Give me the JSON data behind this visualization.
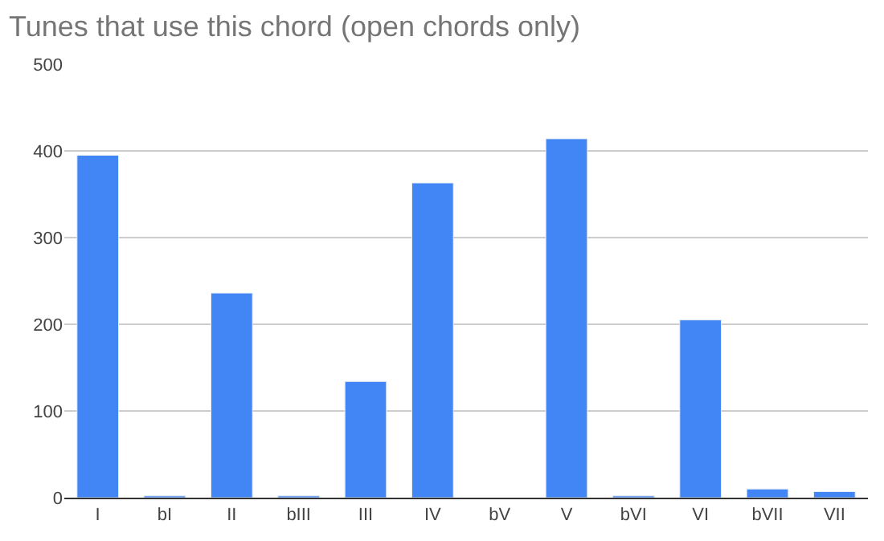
{
  "chart_data": {
    "type": "bar",
    "title": "Tunes that use this chord (open chords only)",
    "categories": [
      "I",
      "bI",
      "II",
      "bIII",
      "III",
      "IV",
      "bV",
      "V",
      "bVI",
      "VI",
      "bVII",
      "VII"
    ],
    "values": [
      395,
      2,
      236,
      2,
      134,
      363,
      null,
      414,
      2,
      205,
      10,
      7
    ],
    "color": "#4285f4",
    "ylim": [
      0,
      500
    ],
    "yticks": [
      0,
      100,
      200,
      300,
      400,
      500
    ],
    "grid": "y"
  }
}
